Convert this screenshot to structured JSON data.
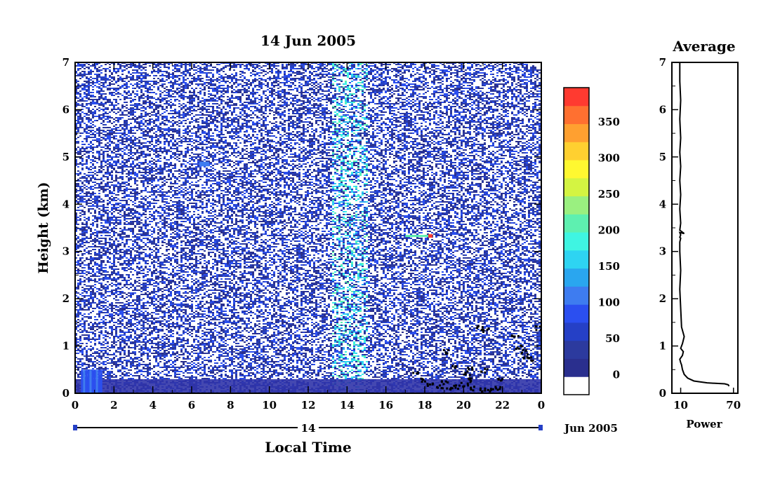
{
  "chart_data": [
    {
      "type": "heatmap",
      "title": "14 Jun 2005",
      "xlabel": "Local Time",
      "ylabel": "Height (km)",
      "x_ticks": [
        "0",
        "2",
        "4",
        "6",
        "8",
        "10",
        "12",
        "14",
        "16",
        "18",
        "20",
        "22",
        "0"
      ],
      "y_ticks": [
        "0",
        "1",
        "2",
        "3",
        "4",
        "5",
        "6",
        "7"
      ],
      "xlim": [
        0,
        24
      ],
      "ylim": [
        0,
        7
      ],
      "date_bar_label": "14",
      "date_suffix": "Jun 2005",
      "colorbar": {
        "ticks": [
          "0",
          "50",
          "100",
          "150",
          "200",
          "250",
          "300",
          "350"
        ],
        "colors": [
          "#ffffff",
          "#2a2f8e",
          "#2c3a9e",
          "#2540c6",
          "#2b4ff0",
          "#3e7cf0",
          "#2aa6ef",
          "#2ed4f2",
          "#3ff5e2",
          "#5ef0b0",
          "#9af080",
          "#d4f442",
          "#fff830",
          "#ffd030",
          "#ffa030",
          "#ff7030",
          "#ff3a30"
        ]
      },
      "features": [
        {
          "name": "surface clutter layer",
          "x": [
            0,
            24
          ],
          "y": [
            0,
            0.3
          ],
          "level": 0
        },
        {
          "name": "low layer near 1 LT",
          "x": [
            0.3,
            1.4
          ],
          "y": [
            0,
            0.5
          ],
          "level": 100
        },
        {
          "name": "enhanced band near 14 LT",
          "x": [
            13.2,
            15.0
          ],
          "y": [
            0,
            7
          ],
          "level": 150
        },
        {
          "name": "layer near 3.3 km",
          "x": [
            17.0,
            18.4
          ],
          "y": [
            3.3,
            3.35
          ],
          "level": 200
        },
        {
          "name": "spot near 6.5 LT",
          "x": [
            6.4,
            6.9
          ],
          "y": [
            4.8,
            4.9
          ],
          "level": 100
        }
      ],
      "black_marks": [
        {
          "x": 17.5,
          "y": 0.45
        },
        {
          "x": 17.8,
          "y": 0.3
        },
        {
          "x": 18.2,
          "y": 0.2
        },
        {
          "x": 18.7,
          "y": 0.15
        },
        {
          "x": 19.2,
          "y": 0.1
        },
        {
          "x": 19.6,
          "y": 0.15
        },
        {
          "x": 20.0,
          "y": 0.2
        },
        {
          "x": 20.3,
          "y": 0.3
        },
        {
          "x": 20.5,
          "y": 0.12
        },
        {
          "x": 20.9,
          "y": 0.1
        },
        {
          "x": 21.3,
          "y": 0.08
        },
        {
          "x": 21.7,
          "y": 0.12
        },
        {
          "x": 19.1,
          "y": 0.9
        },
        {
          "x": 19.5,
          "y": 0.6
        },
        {
          "x": 20.1,
          "y": 0.45
        },
        {
          "x": 20.3,
          "y": 0.55
        },
        {
          "x": 21.0,
          "y": 0.5
        },
        {
          "x": 21.9,
          "y": 0.3
        },
        {
          "x": 22.6,
          "y": 1.25
        },
        {
          "x": 22.8,
          "y": 1.0
        },
        {
          "x": 23.0,
          "y": 0.9
        },
        {
          "x": 23.2,
          "y": 0.8
        },
        {
          "x": 23.4,
          "y": 0.75
        },
        {
          "x": 23.8,
          "y": 1.4
        },
        {
          "x": 20.8,
          "y": 1.4
        },
        {
          "x": 21.1,
          "y": 1.35
        },
        {
          "x": 19.0,
          "y": 0.25
        }
      ]
    },
    {
      "type": "line",
      "title": "Average",
      "xlabel": "Power",
      "x_ticks": [
        "10",
        "70"
      ],
      "y_ticks": [
        "0",
        "1",
        "2",
        "3",
        "4",
        "5",
        "6",
        "7"
      ],
      "xlim": [
        0,
        75
      ],
      "ylim": [
        0,
        7
      ],
      "series": [
        {
          "x": [
            65,
            64,
            60,
            40,
            25,
            18,
            14,
            12,
            11,
            10,
            9,
            12,
            13,
            10,
            12,
            14,
            11,
            10,
            9,
            10,
            9,
            9,
            10,
            9,
            10,
            9,
            14,
            9,
            10,
            9,
            10,
            9,
            10,
            9,
            10,
            9,
            10,
            9,
            9
          ],
          "y": [
            0.15,
            0.18,
            0.2,
            0.22,
            0.26,
            0.32,
            0.4,
            0.5,
            0.6,
            0.65,
            0.72,
            0.8,
            0.88,
            0.95,
            1.05,
            1.2,
            1.4,
            1.8,
            2.2,
            2.6,
            3.0,
            3.2,
            3.28,
            3.3,
            3.35,
            3.4,
            3.38,
            3.45,
            3.6,
            3.9,
            4.2,
            4.5,
            4.8,
            5.1,
            5.4,
            5.8,
            6.2,
            6.6,
            7.0
          ]
        }
      ]
    }
  ]
}
